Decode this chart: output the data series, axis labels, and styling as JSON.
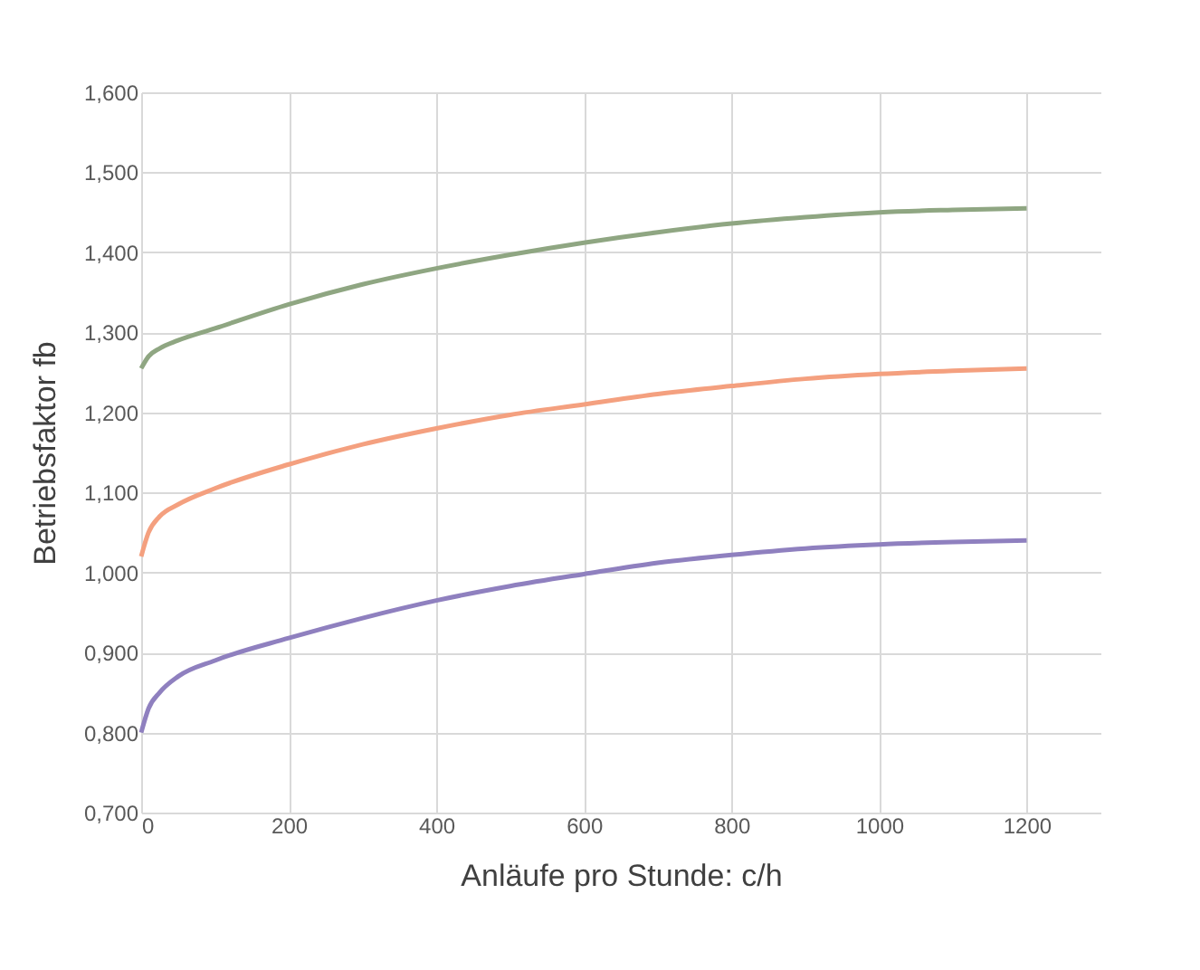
{
  "chart_data": {
    "type": "line",
    "xlabel": "Anläufe pro Stunde: c/h",
    "ylabel": "Betriebsfaktor fb",
    "x": [
      0,
      10,
      25,
      50,
      100,
      200,
      300,
      400,
      500,
      600,
      700,
      800,
      900,
      1000,
      1100,
      1200
    ],
    "series": [
      {
        "color": "#8fa682",
        "values": [
          1.255,
          1.27,
          1.28,
          1.29,
          1.305,
          1.335,
          1.36,
          1.38,
          1.397,
          1.412,
          1.425,
          1.436,
          1.444,
          1.45,
          1.453,
          1.455
        ]
      },
      {
        "color": "#f4a07f",
        "values": [
          1.02,
          1.05,
          1.07,
          1.085,
          1.105,
          1.135,
          1.16,
          1.18,
          1.197,
          1.21,
          1.223,
          1.233,
          1.242,
          1.248,
          1.252,
          1.255
        ]
      },
      {
        "color": "#8f80bf",
        "values": [
          0.8,
          0.83,
          0.85,
          0.87,
          0.89,
          0.918,
          0.943,
          0.965,
          0.983,
          0.998,
          1.012,
          1.022,
          1.03,
          1.035,
          1.038,
          1.04
        ]
      }
    ],
    "xlim": [
      0,
      1300
    ],
    "xticks": [
      0,
      200,
      400,
      600,
      800,
      1000,
      1200
    ],
    "ylim": [
      0.7,
      1.6
    ],
    "yticks": [
      {
        "value": 0.7,
        "label": "0,700"
      },
      {
        "value": 0.8,
        "label": "0,800"
      },
      {
        "value": 0.9,
        "label": "0,900"
      },
      {
        "value": 1.0,
        "label": "1,000"
      },
      {
        "value": 1.1,
        "label": "1,100"
      },
      {
        "value": 1.2,
        "label": "1,200"
      },
      {
        "value": 1.3,
        "label": "1,300"
      },
      {
        "value": 1.4,
        "label": "1,400"
      },
      {
        "value": 1.5,
        "label": "1,500"
      },
      {
        "value": 1.6,
        "label": "1,600"
      }
    ],
    "grid": true,
    "marker": "none",
    "line_style": "solid"
  }
}
